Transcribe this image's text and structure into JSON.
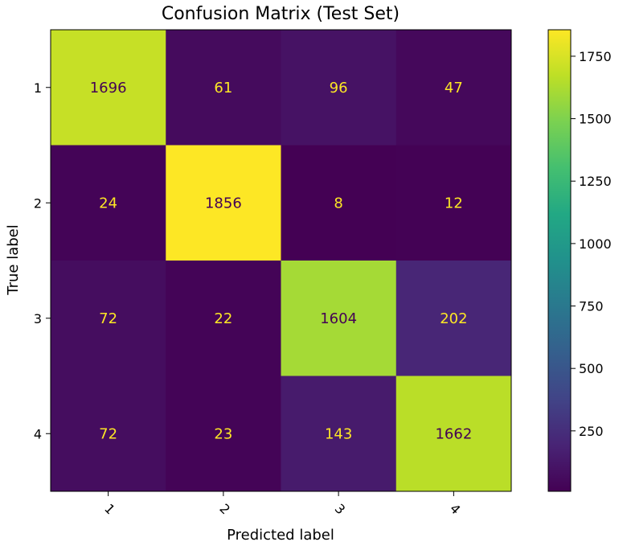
{
  "chart_data": {
    "type": "heatmap",
    "title": "Confusion Matrix (Test Set)",
    "xlabel": "Predicted label",
    "ylabel": "True label",
    "row_labels": [
      "1",
      "2",
      "3",
      "4"
    ],
    "col_labels": [
      "1",
      "2",
      "3",
      "4"
    ],
    "values": [
      [
        1696,
        61,
        96,
        47
      ],
      [
        24,
        1856,
        8,
        12
      ],
      [
        72,
        22,
        1604,
        202
      ],
      [
        72,
        23,
        143,
        1662
      ]
    ],
    "colormap": "viridis",
    "colorbar": {
      "range": [
        8,
        1856
      ],
      "ticks": [
        250,
        500,
        750,
        1000,
        1250,
        1500,
        1750
      ]
    },
    "text_colors": {
      "on_dark": "#fde725",
      "on_light": "#440154"
    }
  }
}
